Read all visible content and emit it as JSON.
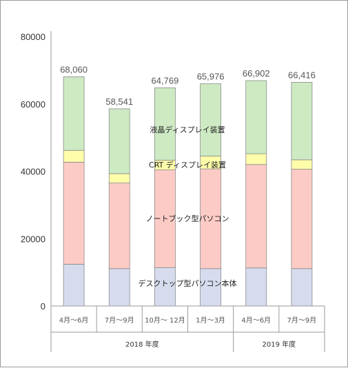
{
  "chart_data": {
    "type": "bar",
    "stacked": true,
    "ylim": [
      0,
      80000
    ],
    "yticks": [
      "0",
      "20000",
      "40000",
      "60000",
      "80000"
    ],
    "categories": [
      "4月～6月",
      "7月～9月",
      "10月～ 12月",
      "1月～3月",
      "4月～6月",
      "7月～9月"
    ],
    "totals": [
      "68,060",
      "58,541",
      "64,769",
      "65,976",
      "66,902",
      "66,416"
    ],
    "total_values": [
      68060,
      58541,
      64769,
      65976,
      66902,
      66416
    ],
    "highlight_index": 5,
    "highlight_color": "#e0302a",
    "fiscal_years": [
      {
        "label": "2018 年度",
        "span": [
          0,
          3
        ]
      },
      {
        "label": "2019 年度",
        "span": [
          4,
          5
        ]
      }
    ],
    "series": [
      {
        "name": "デスクトップ型パソコン本体",
        "color": "#d6dcee",
        "values": [
          12400,
          11100,
          11400,
          11100,
          11300,
          11100
        ]
      },
      {
        "name": "ノートブック型パソコン",
        "color": "#fdcbc6",
        "values": [
          30300,
          25400,
          29000,
          29600,
          30700,
          29500
        ]
      },
      {
        "name": "CRT ディスプレイ装置",
        "color": "#fdfdaa",
        "values": [
          3500,
          2800,
          2900,
          3800,
          3200,
          2800
        ]
      },
      {
        "name": "液晶ディスプレイ装置",
        "color": "#cdeac3",
        "values": [
          21860,
          19241,
          21469,
          21476,
          21702,
          23016
        ]
      }
    ]
  }
}
